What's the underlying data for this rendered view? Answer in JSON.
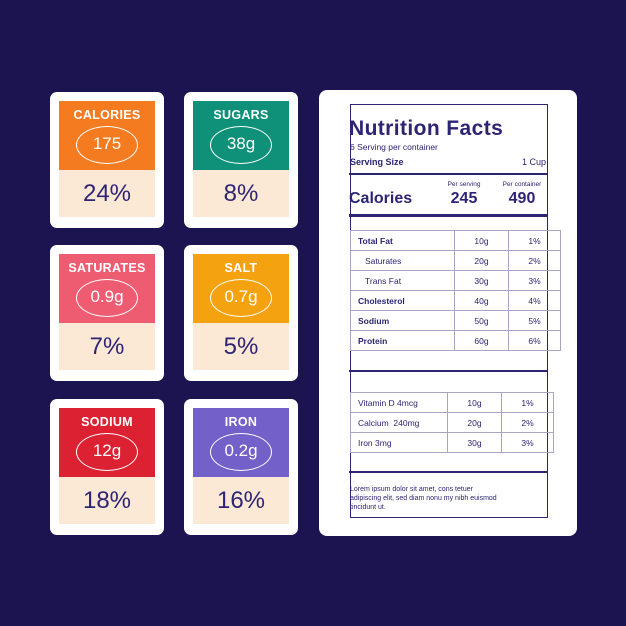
{
  "cards": [
    {
      "name": "CALORIES",
      "amount": "175",
      "percent": "24%",
      "color": "#f47b20"
    },
    {
      "name": "SUGARS",
      "amount": "38g",
      "percent": "8%",
      "color": "#0e9178"
    },
    {
      "name": "SATURATES",
      "amount": "0.9g",
      "percent": "7%",
      "color": "#ee5c72"
    },
    {
      "name": "SALT",
      "amount": "0.7g",
      "percent": "5%",
      "color": "#f5a211"
    },
    {
      "name": "SODIUM",
      "amount": "12g",
      "percent": "18%",
      "color": "#dc2132"
    },
    {
      "name": "IRON",
      "amount": "0.2g",
      "percent": "16%",
      "color": "#7360c8"
    }
  ],
  "facts": {
    "title": "Nutrition Facts",
    "servings": "6 Serving per container",
    "serving_size_label": "Serving Size",
    "serving_size_value": "1 Cup",
    "per_serving_label": "Per serving",
    "per_container_label": "Per container",
    "calories_label": "Calories",
    "calories_serving": "245",
    "calories_container": "490",
    "rows": [
      {
        "name": "Total Fat",
        "amount": "10g",
        "pct": "1%"
      },
      {
        "name": "Saturates",
        "amount": "20g",
        "pct": "2%"
      },
      {
        "name": "Trans Fat",
        "amount": "30g",
        "pct": "3%"
      },
      {
        "name": "Cholesterol",
        "amount": "40g",
        "pct": "4%"
      },
      {
        "name": "Sodium",
        "amount": "50g",
        "pct": "5%"
      },
      {
        "name": "Protein",
        "amount": "60g",
        "pct": "6%"
      }
    ],
    "vitamins": [
      {
        "name": "Vitamin D 4mcg",
        "amount": "10g",
        "pct": "1%"
      },
      {
        "name": "Calcium  240mg",
        "amount": "20g",
        "pct": "2%"
      },
      {
        "name": "Iron 3mg",
        "amount": "30g",
        "pct": "3%"
      }
    ],
    "footer": "Lorem ipsum dolor sit amet, cons tetuer adipiscing elit, sed diam nonu my nibh euismod tincidunt ut."
  }
}
